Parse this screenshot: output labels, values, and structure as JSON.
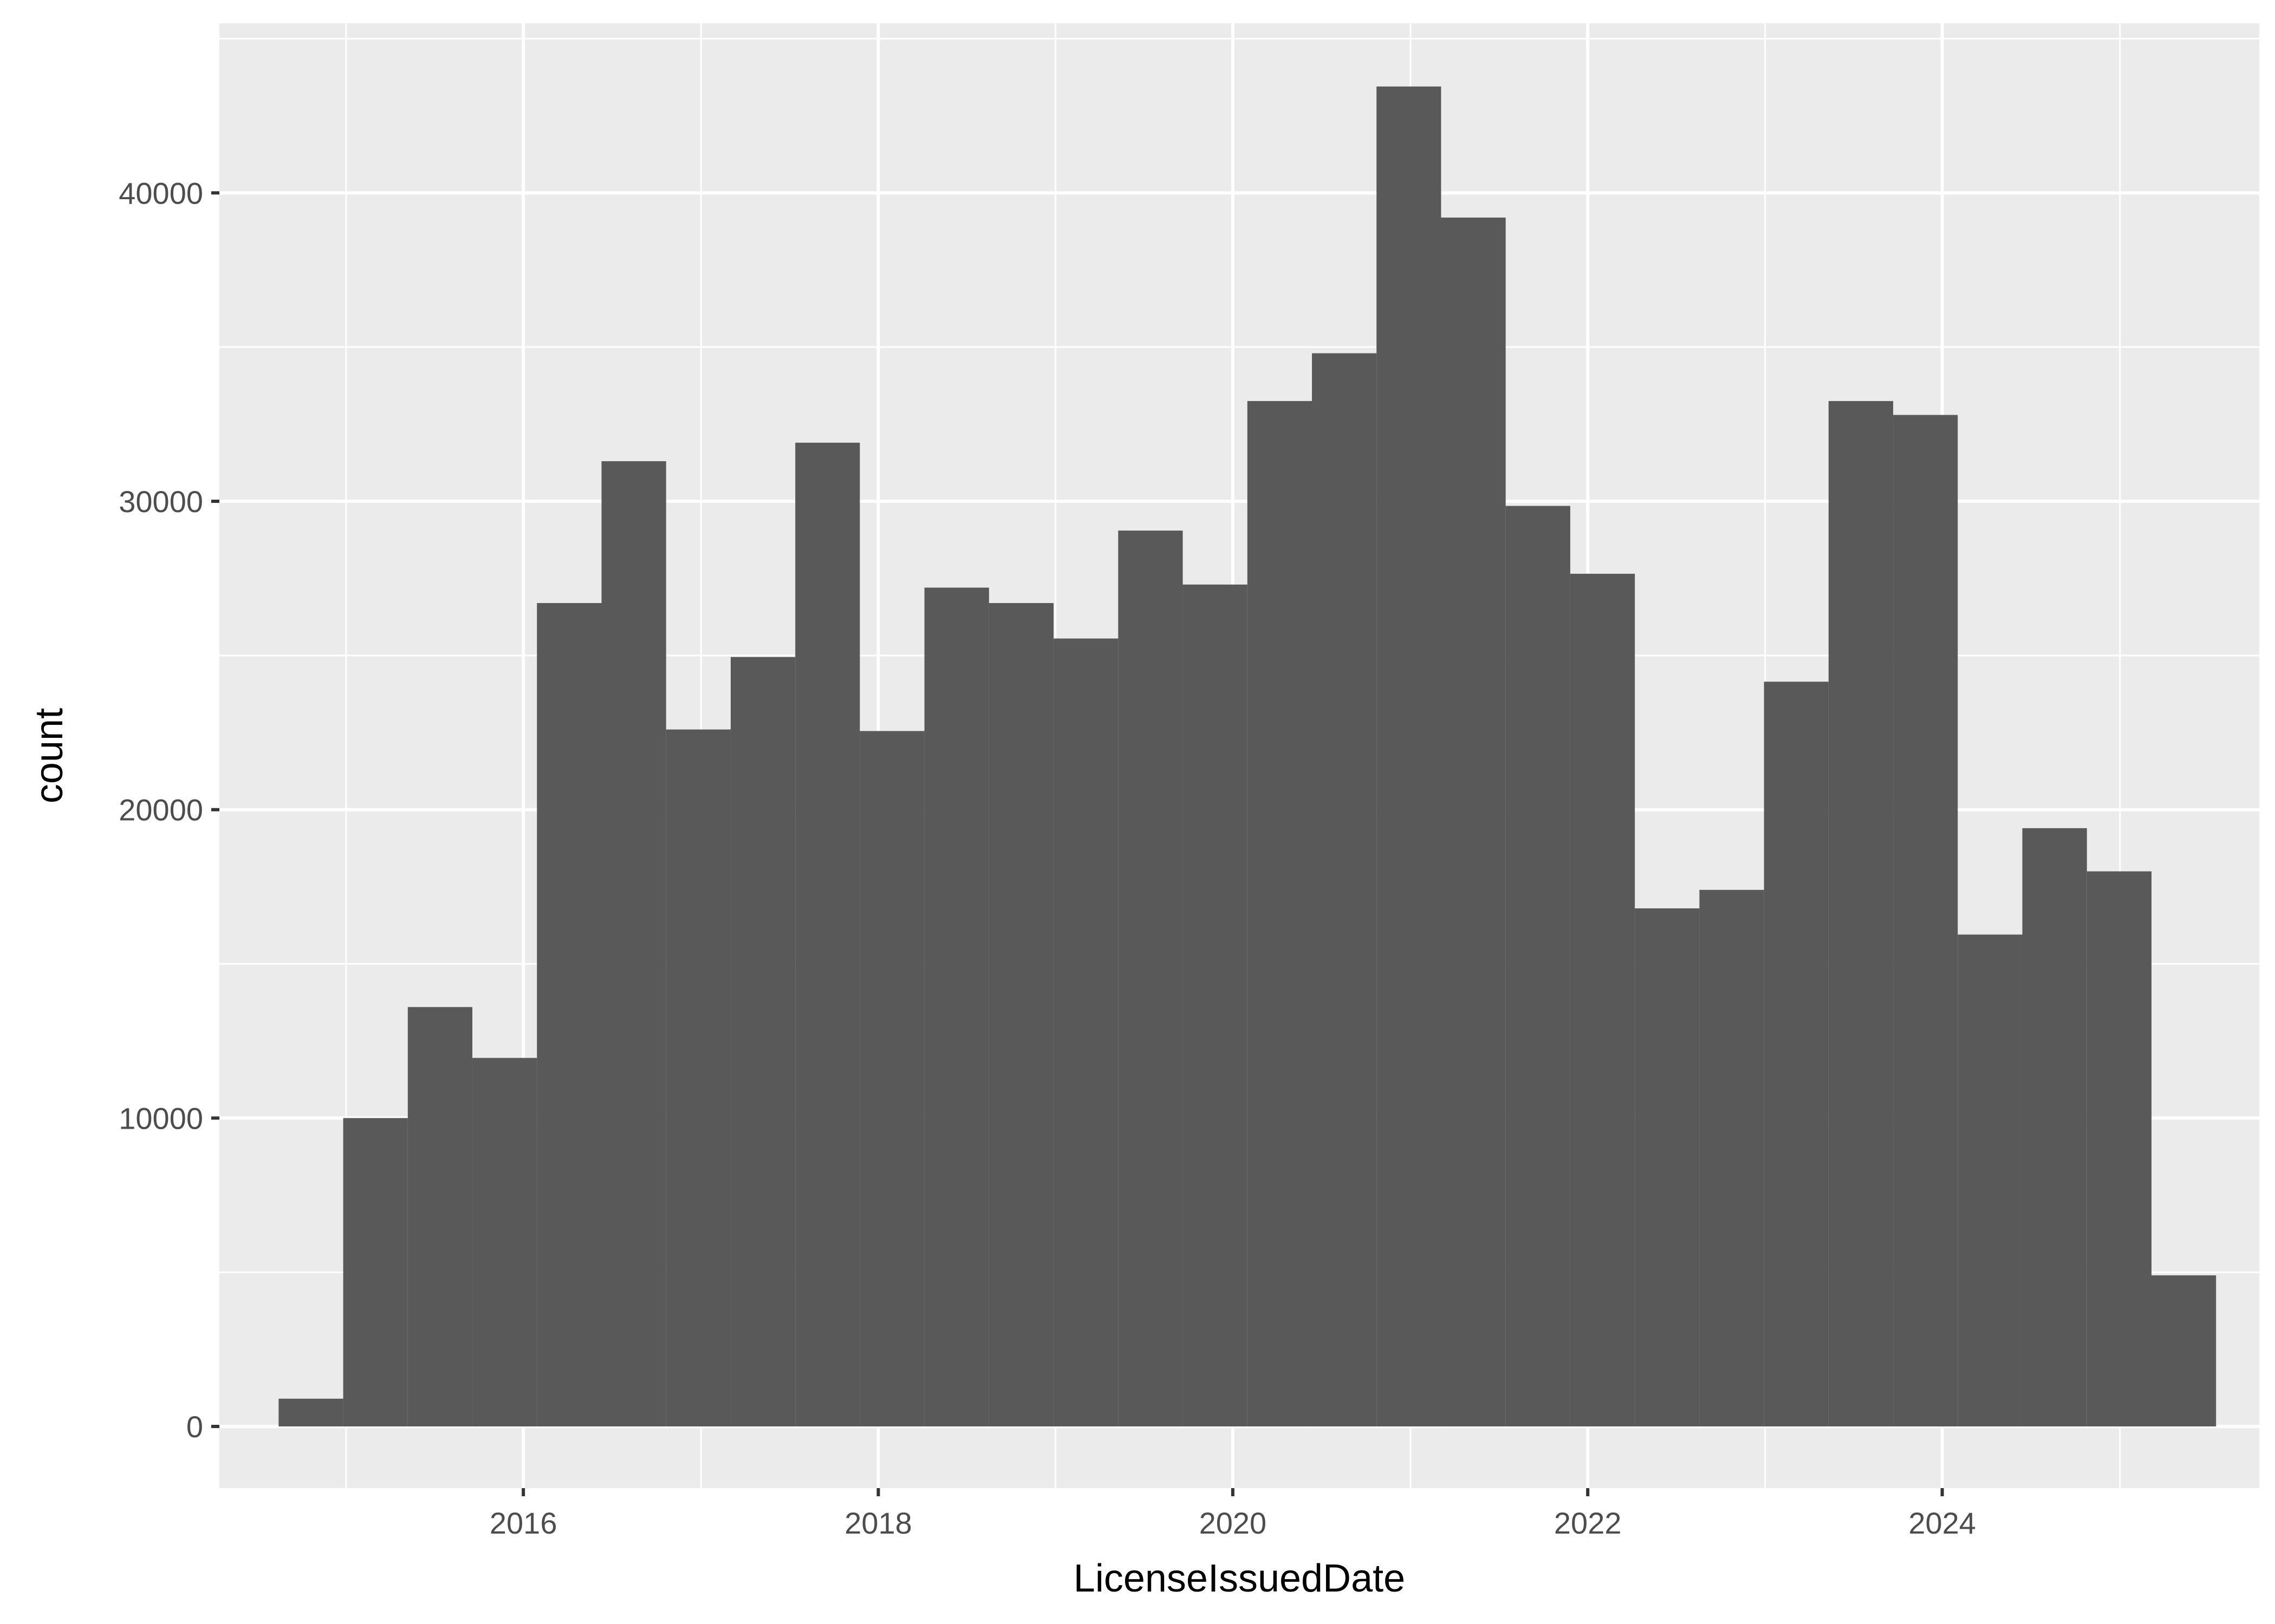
{
  "chart_data": {
    "type": "histogram",
    "xlabel": "LicenseIssuedDate",
    "ylabel": "count",
    "x_axis_type": "date",
    "xlim": [
      "2014-04-15",
      "2025-10-15"
    ],
    "ylim": [
      -2000,
      45500
    ],
    "x_ticks": [
      "2016",
      "2018",
      "2020",
      "2022",
      "2024"
    ],
    "y_ticks": [
      "0",
      "10000",
      "20000",
      "30000",
      "40000"
    ],
    "grid": true,
    "legend": "none",
    "colors": {
      "panel": "#ebebeb",
      "gridline": "#ffffff",
      "bar": "#595959"
    },
    "bins": [
      {
        "start": "2014-08-15",
        "end": "2014-12-26",
        "count": 900
      },
      {
        "start": "2014-12-26",
        "end": "2015-05-08",
        "count": 10000
      },
      {
        "start": "2015-05-08",
        "end": "2015-09-18",
        "count": 13600
      },
      {
        "start": "2015-09-18",
        "end": "2016-01-29",
        "count": 11950
      },
      {
        "start": "2016-01-29",
        "end": "2016-06-10",
        "count": 26700
      },
      {
        "start": "2016-06-10",
        "end": "2016-10-21",
        "count": 31300
      },
      {
        "start": "2016-10-21",
        "end": "2017-03-03",
        "count": 22600
      },
      {
        "start": "2017-03-03",
        "end": "2017-07-14",
        "count": 24950
      },
      {
        "start": "2017-07-14",
        "end": "2017-11-24",
        "count": 31900
      },
      {
        "start": "2017-11-24",
        "end": "2018-04-06",
        "count": 22550
      },
      {
        "start": "2018-04-06",
        "end": "2018-08-17",
        "count": 27200
      },
      {
        "start": "2018-08-17",
        "end": "2018-12-28",
        "count": 26700
      },
      {
        "start": "2018-12-28",
        "end": "2019-05-10",
        "count": 25550
      },
      {
        "start": "2019-05-10",
        "end": "2019-09-20",
        "count": 29050
      },
      {
        "start": "2019-09-20",
        "end": "2020-01-31",
        "count": 27300
      },
      {
        "start": "2020-01-31",
        "end": "2020-06-12",
        "count": 33250
      },
      {
        "start": "2020-06-12",
        "end": "2020-10-23",
        "count": 34800
      },
      {
        "start": "2020-10-23",
        "end": "2021-03-05",
        "count": 43450
      },
      {
        "start": "2021-03-05",
        "end": "2021-07-16",
        "count": 39200
      },
      {
        "start": "2021-07-16",
        "end": "2021-11-26",
        "count": 29850
      },
      {
        "start": "2021-11-26",
        "end": "2022-04-08",
        "count": 27650
      },
      {
        "start": "2022-04-08",
        "end": "2022-08-19",
        "count": 16800
      },
      {
        "start": "2022-08-19",
        "end": "2022-12-30",
        "count": 17400
      },
      {
        "start": "2022-12-30",
        "end": "2023-05-12",
        "count": 24150
      },
      {
        "start": "2023-05-12",
        "end": "2023-09-22",
        "count": 33250
      },
      {
        "start": "2023-09-22",
        "end": "2024-02-02",
        "count": 32800
      },
      {
        "start": "2024-02-02",
        "end": "2024-06-14",
        "count": 15950
      },
      {
        "start": "2024-06-14",
        "end": "2024-10-25",
        "count": 19400
      },
      {
        "start": "2024-10-25",
        "end": "2025-03-07",
        "count": 18000
      },
      {
        "start": "2025-03-07",
        "end": "2025-07-18",
        "count": 4900
      }
    ]
  }
}
